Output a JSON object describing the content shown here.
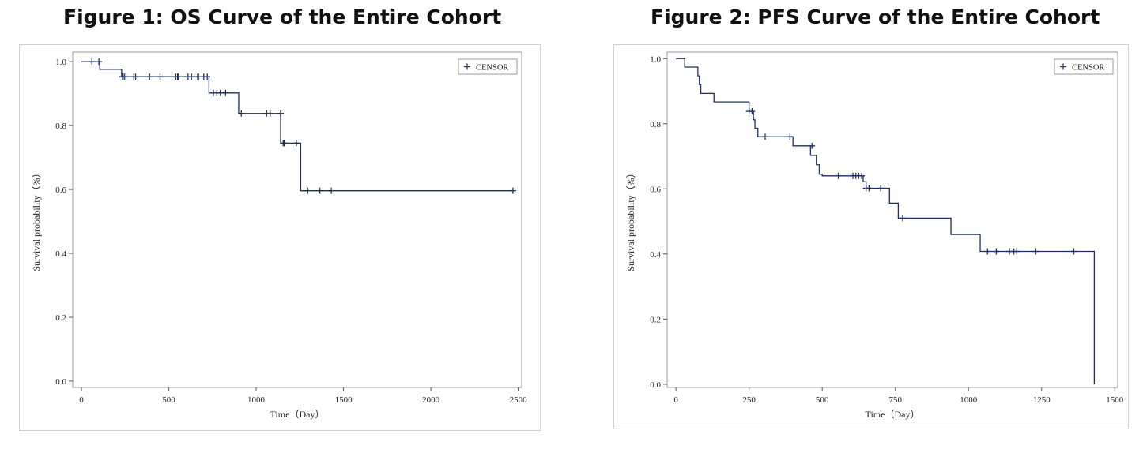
{
  "figure1": {
    "title": "Figure 1: OS Curve of the Entire Cohort"
  },
  "figure2": {
    "title": "Figure 2: PFS Curve of the Entire Cohort"
  },
  "chart_data": [
    {
      "type": "line",
      "title": "Figure 1: OS Curve of the Entire Cohort",
      "xlabel": "Time（Day）",
      "ylabel": "Survival probability（%）",
      "xlim": [
        -50,
        2520
      ],
      "ylim": [
        -0.02,
        1.03
      ],
      "x_ticks": [
        0,
        500,
        1000,
        1500,
        2000,
        2500
      ],
      "y_ticks": [
        0.0,
        0.2,
        0.4,
        0.6,
        0.8,
        1.0
      ],
      "grid": false,
      "legend": {
        "position": "top-right",
        "entries": [
          "CENSOR"
        ]
      },
      "series": [
        {
          "name": "",
          "step_x": [
            0,
            105,
            230,
            730,
            900,
            1140,
            1255,
            2470
          ],
          "step_y": [
            1.0,
            0.976,
            0.953,
            0.902,
            0.838,
            0.745,
            0.596,
            0.596
          ],
          "censor_x": [
            60,
            100,
            235,
            245,
            255,
            300,
            310,
            390,
            450,
            540,
            550,
            555,
            610,
            630,
            665,
            670,
            700,
            720,
            755,
            775,
            795,
            825,
            915,
            1060,
            1080,
            1140,
            1155,
            1160,
            1230,
            1295,
            1365,
            1430,
            2470
          ],
          "censor_y": [
            1.0,
            1.0,
            0.953,
            0.953,
            0.953,
            0.953,
            0.953,
            0.953,
            0.953,
            0.953,
            0.953,
            0.953,
            0.953,
            0.953,
            0.953,
            0.953,
            0.953,
            0.953,
            0.902,
            0.902,
            0.902,
            0.902,
            0.838,
            0.838,
            0.838,
            0.838,
            0.745,
            0.745,
            0.745,
            0.596,
            0.596,
            0.596,
            0.596
          ]
        }
      ]
    },
    {
      "type": "line",
      "title": "Figure 2: PFS Curve of the Entire Cohort",
      "xlabel": "Time（Day）",
      "ylabel": "Survival probability（%）",
      "xlim": [
        -30,
        1510
      ],
      "ylim": [
        -0.01,
        1.02
      ],
      "x_ticks": [
        0,
        250,
        500,
        750,
        1000,
        1250,
        1500
      ],
      "y_ticks": [
        0.0,
        0.2,
        0.4,
        0.6,
        0.8,
        1.0
      ],
      "grid": false,
      "legend": {
        "position": "top-right",
        "entries": [
          "CENSOR"
        ]
      },
      "series": [
        {
          "name": "",
          "step_x": [
            0,
            30,
            75,
            80,
            85,
            130,
            250,
            265,
            270,
            280,
            400,
            460,
            480,
            490,
            500,
            640,
            650,
            660,
            730,
            760,
            940,
            1040,
            1430
          ],
          "step_y": [
            1.0,
            0.974,
            0.947,
            0.92,
            0.893,
            0.867,
            0.838,
            0.812,
            0.786,
            0.76,
            0.732,
            0.703,
            0.674,
            0.645,
            0.64,
            0.622,
            0.602,
            0.602,
            0.556,
            0.51,
            0.46,
            0.408,
            0.0
          ],
          "censor_x": [
            250,
            260,
            305,
            390,
            465,
            555,
            605,
            615,
            625,
            635,
            650,
            660,
            700,
            775,
            1065,
            1095,
            1140,
            1155,
            1165,
            1230,
            1360
          ],
          "censor_y": [
            0.838,
            0.838,
            0.76,
            0.76,
            0.732,
            0.64,
            0.64,
            0.64,
            0.64,
            0.64,
            0.602,
            0.602,
            0.602,
            0.51,
            0.408,
            0.408,
            0.408,
            0.408,
            0.408,
            0.408,
            0.408
          ]
        }
      ]
    }
  ],
  "style": {
    "curve_color": "#1f2f5c",
    "frame_color": "#9a9a9a",
    "axis_color": "#555555"
  }
}
